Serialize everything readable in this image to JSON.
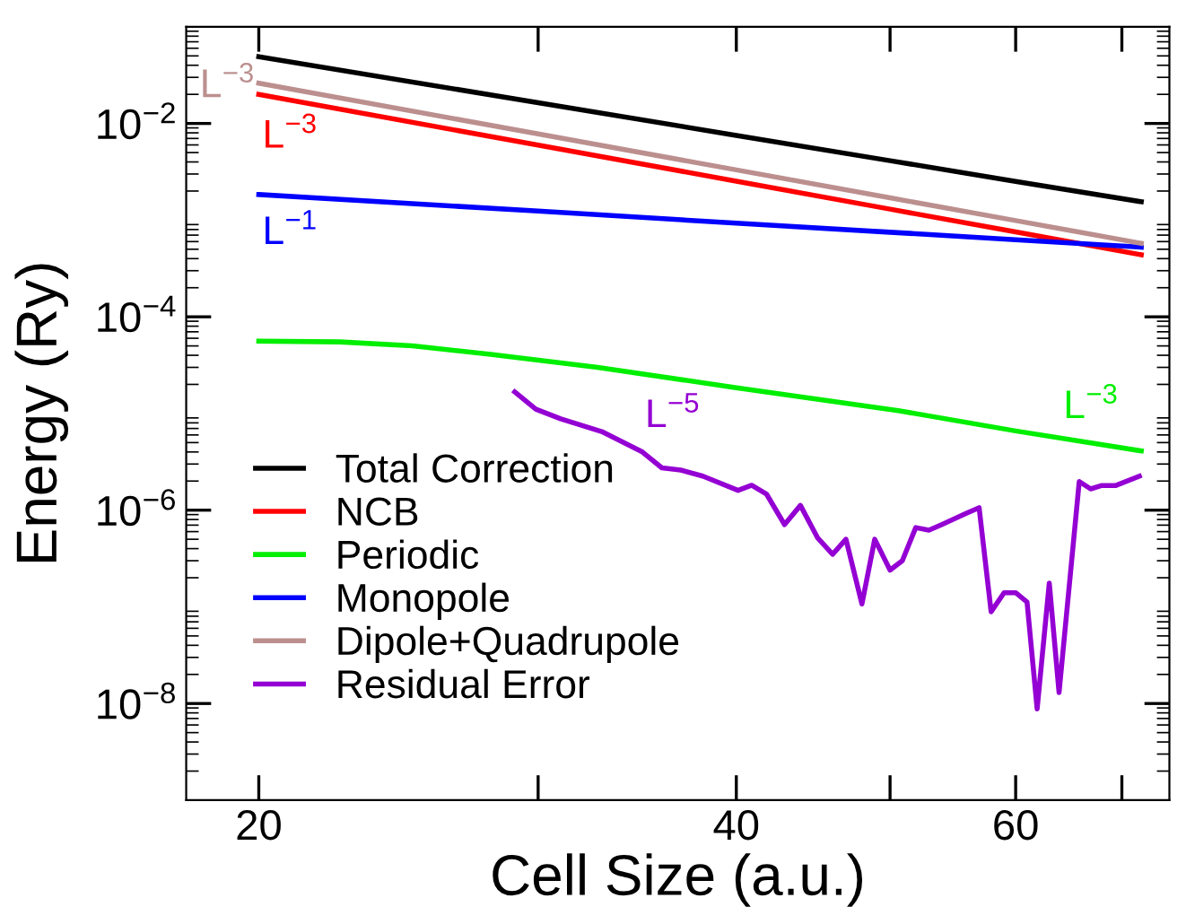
{
  "chart_data": {
    "type": "line",
    "xlabel": "Cell Size (a.u.)",
    "ylabel": "Energy (Ry)",
    "log": "xy",
    "xlim": [
      18,
      75
    ],
    "xticks": [
      20,
      40,
      60,
      {
        "value": 30,
        "label": null
      },
      {
        "value": 50,
        "label": null
      },
      {
        "value": 70,
        "label": null
      }
    ],
    "ylim": [
      1e-09,
      0.1
    ],
    "yticks": [
      {
        "value": 1e-08,
        "label": "10$^{−8}$"
      },
      {
        "value": 1e-06,
        "label": "10$^{−6}$"
      },
      {
        "value": 0.0001,
        "label": "10$^{−4}$"
      },
      {
        "value": 0.01,
        "label": "10$^{−2}$"
      }
    ],
    "legend": "bottom left",
    "grid": false,
    "series": [
      {
        "name": "Total Correction",
        "color": "#000000",
        "x": [
          20,
          30,
          40,
          50,
          60,
          72
        ],
        "values": [
          0.049,
          0.0164,
          0.00753,
          0.00412,
          0.00252,
          0.00155
        ]
      },
      {
        "name": "NCB",
        "color": "#ff0000",
        "x": [
          20,
          30,
          40,
          50,
          60,
          72
        ],
        "values": [
          0.02,
          0.00596,
          0.00253,
          0.0013,
          0.000755,
          0.000438
        ]
      },
      {
        "name": "Periodic",
        "color": "#00ee00",
        "x": [
          20,
          22.5,
          25,
          28,
          32.7,
          40,
          50.6,
          60,
          72
        ],
        "values": [
          5.6e-05,
          5.5e-05,
          5e-05,
          4.1e-05,
          3e-05,
          1.85e-05,
          1.07e-05,
          6.6e-06,
          4.1e-06
        ]
      },
      {
        "name": "Monopole",
        "color": "#0000ff",
        "x": [
          20,
          30,
          40,
          50,
          60,
          72
        ],
        "values": [
          0.00184,
          0.00124,
          0.00093,
          0.00075,
          0.000628,
          0.000525
        ]
      },
      {
        "name": "Dipole+Quadrupole",
        "color": "#bc8f8f",
        "x": [
          20,
          30,
          40,
          50,
          60,
          72
        ],
        "values": [
          0.0261,
          0.0078,
          0.00331,
          0.0017,
          0.00099,
          0.000575
        ]
      },
      {
        "name": "Residual Error",
        "color": "#9400d3",
        "x": [
          29.0,
          29.9,
          31.0,
          32.9,
          34.9,
          35.9,
          36.9,
          38.1,
          40.1,
          40.9,
          41.8,
          42.9,
          43.9,
          45.0,
          46.0,
          46.9,
          48.0,
          48.9,
          50.0,
          50.9,
          51.9,
          52.9,
          53.9,
          55.8,
          56.9,
          57.9,
          59.0,
          60.0,
          61.0,
          61.9,
          63.0,
          63.9,
          65.8,
          66.9,
          68.0,
          69.4,
          71.8
        ],
        "values": [
          1.67e-05,
          1.11e-05,
          8.8e-06,
          6.5e-06,
          4e-06,
          2.74e-06,
          2.6e-06,
          2.25e-06,
          1.6e-06,
          1.81e-06,
          1.46e-06,
          7.1e-07,
          1.12e-06,
          5.2e-07,
          3.5e-07,
          5e-07,
          1.07e-07,
          5e-07,
          2.4e-07,
          3e-07,
          6.6e-07,
          6.2e-07,
          7.1e-07,
          9.2e-07,
          1.06e-06,
          8.9e-08,
          1.4e-07,
          1.4e-07,
          1.12e-07,
          8.8e-09,
          1.76e-07,
          1.3e-08,
          1.98e-06,
          1.66e-06,
          1.8e-06,
          1.8e-06,
          2.25e-06
        ]
      }
    ],
    "annotations": [
      "L$^{−3}$",
      "L$^{−3}$",
      "L$^{−1}$",
      "L$^{−3}$",
      "L$^{−5}$"
    ]
  }
}
